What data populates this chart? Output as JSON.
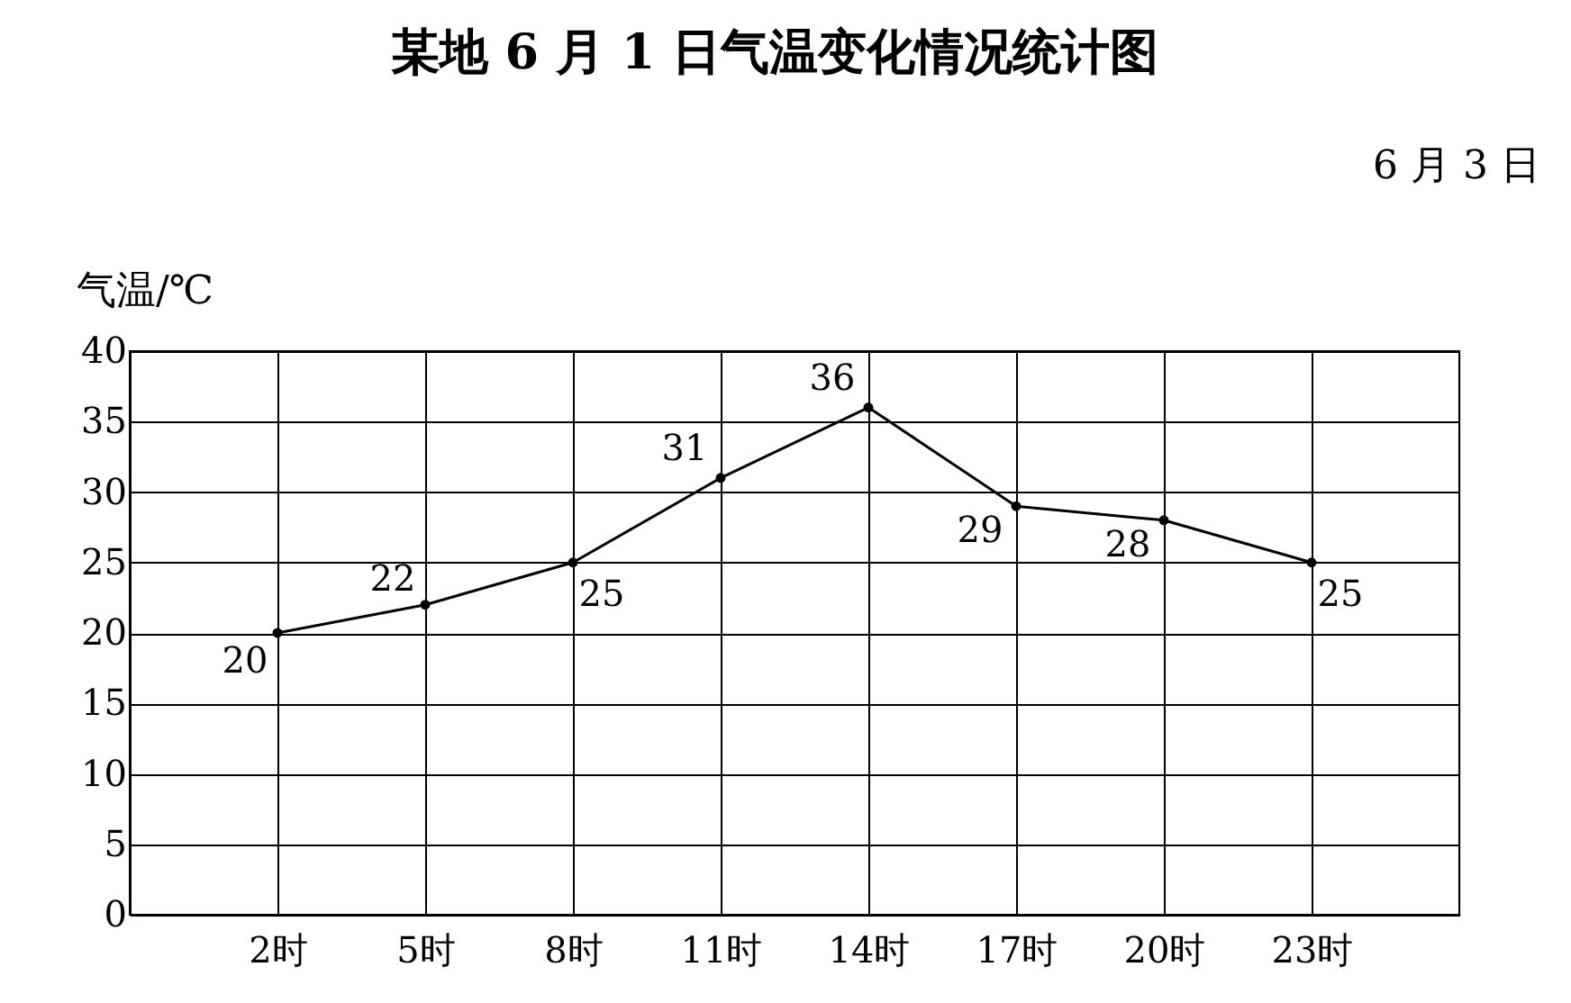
{
  "chart_data": {
    "type": "line",
    "title": "某地 6 月 1 日气温变化情况统计图",
    "ylabel": "气温/℃",
    "annotations": [
      "6 月 3 日"
    ],
    "categories": [
      "2时",
      "5时",
      "8时",
      "11时",
      "14时",
      "17时",
      "20时",
      "23时"
    ],
    "values": [
      20,
      22,
      25,
      31,
      36,
      29,
      28,
      25
    ],
    "color": "#000000",
    "marker": "circle",
    "line_style": "solid",
    "ylim": [
      0,
      40
    ],
    "yticks": [
      0,
      5,
      10,
      15,
      20,
      25,
      30,
      35,
      40
    ],
    "grid": true,
    "data_labels": true,
    "legend": false
  }
}
